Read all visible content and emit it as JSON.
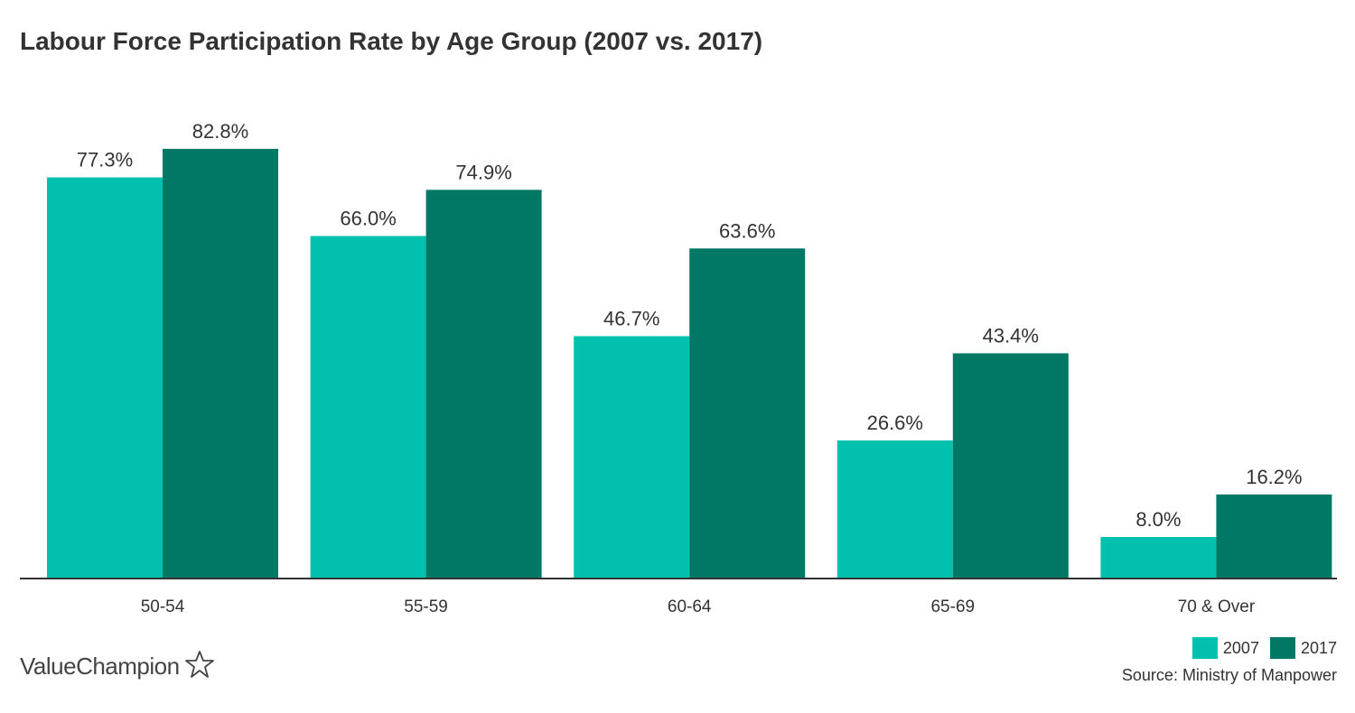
{
  "title": "Labour Force Participation Rate by Age Group (2007 vs. 2017)",
  "legend": [
    {
      "label": "2007",
      "color": "#00c0ae"
    },
    {
      "label": "2017",
      "color": "#007866"
    }
  ],
  "source": "Source: Ministry of Manpower",
  "logo": {
    "text": "ValueChampion",
    "icon": "star-outline-icon"
  },
  "chart_data": {
    "type": "bar",
    "title": "Labour Force Participation Rate by Age Group (2007 vs. 2017)",
    "xlabel": "",
    "ylabel": "",
    "categories": [
      "50-54",
      "55-59",
      "60-64",
      "65-69",
      "70 & Over"
    ],
    "series": [
      {
        "name": "2007",
        "values": [
          77.3,
          66.0,
          46.7,
          26.6,
          8.0
        ],
        "labels": [
          "77.3%",
          "66.0%",
          "46.7%",
          "26.6%",
          "8.0%"
        ],
        "color": "#00c0ae"
      },
      {
        "name": "2017",
        "values": [
          82.8,
          74.9,
          63.6,
          43.4,
          16.2
        ],
        "labels": [
          "82.8%",
          "74.9%",
          "63.6%",
          "43.4%",
          "16.2%"
        ],
        "color": "#007866"
      }
    ],
    "ylim": [
      0,
      100
    ],
    "grid": false,
    "legend_position": "bottom-right"
  }
}
